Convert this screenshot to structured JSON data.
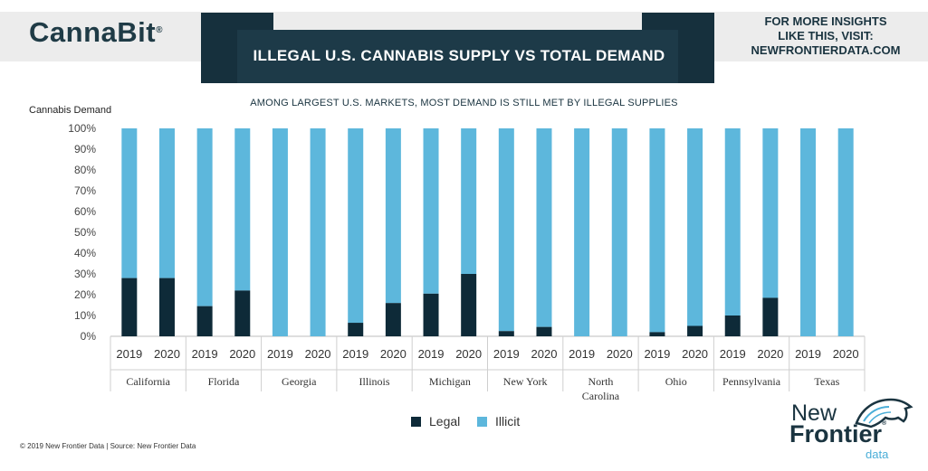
{
  "brand": {
    "name": "CannaBit",
    "tm": "®"
  },
  "header": {
    "title": "ILLEGAL U.S. CANNABIS SUPPLY VS TOTAL DEMAND",
    "insights_lines": [
      "FOR MORE INSIGHTS",
      "LIKE THIS, VISIT:",
      "NEWFRONTIERDATA.COM"
    ]
  },
  "footer": {
    "text": "© 2019  New Frontier Data | Source:  New Frontier Data"
  },
  "corner_logo": {
    "word1": "New",
    "word2": "Frontier",
    "tm": "®",
    "word3": "data"
  },
  "colors": {
    "legal": "#0e2a38",
    "illicit": "#5db7dc",
    "ribbon": "#16303d",
    "band": "#ececec"
  },
  "chart_data": {
    "type": "bar",
    "stacked": true,
    "percent": true,
    "title": "",
    "subtitle": "AMONG LARGEST U.S. MARKETS, MOST DEMAND IS STILL MET BY ILLEGAL SUPPLIES",
    "ylabel": "Cannabis Demand",
    "ylim": [
      0,
      100
    ],
    "yticks": [
      "0%",
      "10%",
      "20%",
      "30%",
      "40%",
      "50%",
      "60%",
      "70%",
      "80%",
      "90%",
      "100%"
    ],
    "groups": [
      {
        "name": [
          "California"
        ],
        "bars": [
          {
            "year": "2019",
            "legal": 28
          },
          {
            "year": "2020",
            "legal": 28
          }
        ]
      },
      {
        "name": [
          "Florida"
        ],
        "bars": [
          {
            "year": "2019",
            "legal": 14.5
          },
          {
            "year": "2020",
            "legal": 22
          }
        ]
      },
      {
        "name": [
          "Georgia"
        ],
        "bars": [
          {
            "year": "2019",
            "legal": 0
          },
          {
            "year": "2020",
            "legal": 0
          }
        ]
      },
      {
        "name": [
          "Illinois"
        ],
        "bars": [
          {
            "year": "2019",
            "legal": 6.5
          },
          {
            "year": "2020",
            "legal": 16
          }
        ]
      },
      {
        "name": [
          "Michigan"
        ],
        "bars": [
          {
            "year": "2019",
            "legal": 20.5
          },
          {
            "year": "2020",
            "legal": 30
          }
        ]
      },
      {
        "name": [
          "New York"
        ],
        "bars": [
          {
            "year": "2019",
            "legal": 2.5
          },
          {
            "year": "2020",
            "legal": 4.5
          }
        ]
      },
      {
        "name": [
          "North",
          "Carolina"
        ],
        "bars": [
          {
            "year": "2019",
            "legal": 0
          },
          {
            "year": "2020",
            "legal": 0
          }
        ]
      },
      {
        "name": [
          "Ohio"
        ],
        "bars": [
          {
            "year": "2019",
            "legal": 2
          },
          {
            "year": "2020",
            "legal": 5
          }
        ]
      },
      {
        "name": [
          "Pennsylvania"
        ],
        "bars": [
          {
            "year": "2019",
            "legal": 10
          },
          {
            "year": "2020",
            "legal": 18.5
          }
        ]
      },
      {
        "name": [
          "Texas"
        ],
        "bars": [
          {
            "year": "2019",
            "legal": 0
          },
          {
            "year": "2020",
            "legal": 0
          }
        ]
      }
    ],
    "series": [
      {
        "name": "Legal",
        "color": "#0e2a38"
      },
      {
        "name": "Illicit",
        "color": "#5db7dc"
      }
    ],
    "legend_position": "bottom-center",
    "grid": false
  }
}
